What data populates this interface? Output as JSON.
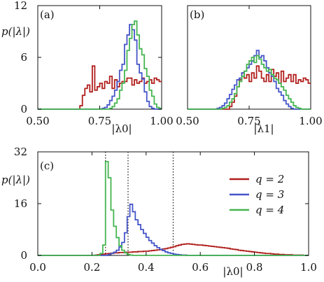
{
  "colors": {
    "q2": "#b01f1c",
    "q3": "#4656c8",
    "q4": "#45b550",
    "axis": "#111111",
    "dotted": "#222222"
  },
  "chart_data": [
    {
      "type": "line",
      "panel_label": "(a)",
      "xlabel": "|λ0|",
      "ylabel": "p(|λ|)",
      "xlim": [
        0.5,
        1.0
      ],
      "ylim": [
        0,
        12
      ],
      "x_ticks": [
        "0.50",
        "0.75",
        "1.00"
      ],
      "x_tick_values": [
        0.5,
        0.75,
        1.0
      ],
      "y_ticks": [
        "0",
        "6",
        "12"
      ],
      "y_tick_values": [
        0,
        6,
        12
      ],
      "grid": false,
      "bin_edges_start": 0.5,
      "bin_width": 0.01,
      "series": [
        {
          "key": "q2",
          "values": [
            0,
            0,
            0,
            0,
            0,
            0,
            0,
            0,
            0,
            0,
            0,
            0,
            0,
            0,
            0,
            0,
            0,
            0.4,
            1.6,
            2.4,
            2.8,
            2.0,
            5.0,
            2.2,
            2.6,
            3.0,
            2.4,
            3.2,
            3.0,
            3.8,
            2.4,
            3.4,
            2.6,
            3.0,
            3.2,
            3.2,
            3.6,
            3.6,
            2.8,
            3.4,
            3.0,
            3.2,
            3.6,
            3.0,
            3.2,
            3.4,
            3.0,
            3.6,
            3.4,
            3.2
          ]
        },
        {
          "key": "q3",
          "values": [
            0,
            0,
            0,
            0,
            0,
            0,
            0,
            0,
            0,
            0,
            0,
            0,
            0,
            0,
            0,
            0,
            0,
            0,
            0,
            0,
            0,
            0,
            0,
            0,
            0,
            0,
            0.1,
            0.2,
            0.5,
            1.0,
            1.5,
            2.2,
            3.2,
            4.5,
            5.2,
            7.5,
            8.6,
            9.8,
            9.2,
            8.0,
            5.2,
            4.2,
            3.5,
            2.0,
            0.9,
            0.3,
            0.1,
            0,
            0,
            0
          ]
        },
        {
          "key": "q4",
          "values": [
            0,
            0,
            0,
            0,
            0,
            0,
            0,
            0,
            0,
            0,
            0,
            0,
            0,
            0,
            0,
            0,
            0,
            0,
            0,
            0,
            0,
            0,
            0,
            0,
            0,
            0,
            0,
            0,
            0,
            0.1,
            0.3,
            0.7,
            1.2,
            2.2,
            3.0,
            4.5,
            6.8,
            8.2,
            9.8,
            10.2,
            8.6,
            7.0,
            6.3,
            4.7,
            3.8,
            2.2,
            1.5,
            0.6,
            0.2,
            0.1
          ]
        }
      ]
    },
    {
      "type": "line",
      "panel_label": "(b)",
      "xlabel": "|λ1|",
      "ylabel": "",
      "xlim": [
        0.5,
        1.0
      ],
      "ylim": [
        0,
        12
      ],
      "x_ticks": [
        "0.50",
        "0.75",
        "1.00"
      ],
      "x_tick_values": [
        0.5,
        0.75,
        1.0
      ],
      "grid": false,
      "bin_edges_start": 0.5,
      "bin_width": 0.01,
      "series": [
        {
          "key": "q2",
          "values": [
            0,
            0,
            0,
            0,
            0,
            0,
            0,
            0,
            0,
            0,
            0,
            0,
            0,
            0,
            0,
            0,
            0,
            0.3,
            0.8,
            1.5,
            2.6,
            3.4,
            4.2,
            3.6,
            4.0,
            3.2,
            4.2,
            3.6,
            5.0,
            4.4,
            3.6,
            3.2,
            4.0,
            3.2,
            4.6,
            3.8,
            4.2,
            3.0,
            4.4,
            3.2,
            3.6,
            4.0,
            3.2,
            4.0,
            3.0,
            3.4,
            3.2,
            3.6,
            3.4,
            3.0
          ]
        },
        {
          "key": "q3",
          "values": [
            0,
            0,
            0,
            0,
            0,
            0,
            0,
            0,
            0,
            0,
            0,
            0,
            0.1,
            0.2,
            0.4,
            0.7,
            1.2,
            1.7,
            2.3,
            2.8,
            3.4,
            3.6,
            4.2,
            4.4,
            4.8,
            5.2,
            5.6,
            6.2,
            6.8,
            6.0,
            6.2,
            5.6,
            4.8,
            4.2,
            3.8,
            3.2,
            2.4,
            2.0,
            1.6,
            1.0,
            0.6,
            0.3,
            0.1,
            0,
            0,
            0,
            0,
            0,
            0,
            0
          ]
        },
        {
          "key": "q4",
          "values": [
            0,
            0,
            0,
            0,
            0,
            0,
            0,
            0,
            0,
            0,
            0,
            0,
            0,
            0,
            0.1,
            0.2,
            0.4,
            0.8,
            1.2,
            1.8,
            2.6,
            3.2,
            3.8,
            4.4,
            5.2,
            5.6,
            6.0,
            5.4,
            6.2,
            5.8,
            5.2,
            4.8,
            4.4,
            4.6,
            4.0,
            3.6,
            3.4,
            3.0,
            2.6,
            2.2,
            1.6,
            1.2,
            0.8,
            0.4,
            0.2,
            0.1,
            0,
            0,
            0,
            0
          ]
        }
      ]
    },
    {
      "type": "line",
      "panel_label": "(c)",
      "xlabel": "|λ0|",
      "ylabel": "p(|λ|)",
      "xlim": [
        0.0,
        1.0
      ],
      "ylim": [
        0,
        32
      ],
      "x_ticks": [
        "0.0",
        "0.2",
        "0.4",
        "0.6",
        "0.8",
        "1.0"
      ],
      "x_tick_values": [
        0,
        0.2,
        0.4,
        0.6,
        0.8,
        1.0
      ],
      "y_ticks": [
        "0",
        "16",
        "32"
      ],
      "y_tick_values": [
        0,
        16,
        32
      ],
      "grid": false,
      "legend_position": "right",
      "reference_lines_x": [
        0.25,
        0.3333,
        0.5
      ],
      "bin_edges_start": 0.0,
      "bin_width": 0.01,
      "series": [
        {
          "key": "q2",
          "name": "q = 2",
          "values": [
            0,
            0,
            0,
            0,
            0,
            0,
            0,
            0,
            0,
            0,
            0,
            0,
            0,
            0,
            0,
            0,
            0,
            0,
            0,
            0,
            0,
            0.1,
            0.2,
            0.3,
            0.4,
            0.5,
            0.6,
            0.7,
            0.8,
            0.8,
            0.9,
            0.9,
            1.0,
            1.0,
            1.0,
            1.1,
            1.1,
            1.2,
            1.2,
            1.3,
            1.3,
            1.4,
            1.5,
            1.6,
            1.7,
            1.8,
            2.0,
            2.1,
            2.3,
            2.5,
            2.7,
            3.0,
            3.2,
            3.4,
            3.5,
            3.6,
            3.5,
            3.4,
            3.3,
            3.2,
            3.2,
            3.1,
            3.0,
            2.9,
            2.8,
            2.7,
            2.6,
            2.5,
            2.4,
            2.3,
            2.2,
            2.0,
            1.9,
            1.8,
            1.6,
            1.5,
            1.4,
            1.3,
            1.2,
            1.1,
            1.0,
            0.9,
            0.8,
            0.7,
            0.6,
            0.6,
            0.5,
            0.4,
            0.4,
            0.3,
            0.3,
            0.2,
            0.2,
            0.2,
            0.1,
            0.1,
            0.1,
            0.1,
            0,
            0
          ]
        },
        {
          "key": "q3",
          "name": "q = 3",
          "values": [
            0,
            0,
            0,
            0,
            0,
            0,
            0,
            0,
            0,
            0,
            0,
            0,
            0,
            0,
            0,
            0,
            0,
            0,
            0,
            0,
            0,
            0,
            0,
            0,
            0,
            0,
            0.3,
            0.6,
            1.0,
            1.6,
            2.6,
            4.0,
            7.0,
            12.0,
            15.8,
            13.5,
            11.0,
            9.5,
            8.0,
            6.8,
            5.6,
            4.6,
            3.8,
            3.0,
            2.4,
            1.9,
            1.5,
            1.1,
            0.8,
            0.6,
            0.4,
            0.3,
            0.2,
            0.1,
            0.1,
            0,
            0,
            0,
            0,
            0,
            0,
            0,
            0,
            0,
            0,
            0,
            0,
            0,
            0,
            0,
            0,
            0,
            0,
            0,
            0,
            0,
            0,
            0,
            0,
            0,
            0,
            0,
            0,
            0,
            0,
            0,
            0,
            0,
            0,
            0,
            0,
            0,
            0,
            0,
            0,
            0,
            0,
            0,
            0,
            0
          ]
        },
        {
          "key": "q4",
          "name": "q = 4",
          "values": [
            0,
            0,
            0,
            0,
            0,
            0,
            0,
            0,
            0,
            0,
            0,
            0,
            0,
            0,
            0,
            0,
            0,
            0,
            0,
            0,
            0,
            0,
            0,
            0.6,
            3.2,
            29.0,
            24.0,
            14.0,
            9.0,
            5.5,
            3.0,
            1.6,
            0.8,
            0.3,
            0.1,
            0,
            0,
            0,
            0,
            0,
            0,
            0,
            0,
            0,
            0,
            0,
            0,
            0,
            0,
            0,
            0,
            0,
            0,
            0,
            0,
            0,
            0,
            0,
            0,
            0,
            0,
            0,
            0,
            0,
            0,
            0,
            0,
            0,
            0,
            0,
            0,
            0,
            0,
            0,
            0,
            0,
            0,
            0,
            0,
            0,
            0,
            0,
            0,
            0,
            0,
            0,
            0,
            0,
            0,
            0,
            0,
            0,
            0,
            0,
            0,
            0,
            0,
            0,
            0,
            0
          ]
        }
      ]
    }
  ]
}
